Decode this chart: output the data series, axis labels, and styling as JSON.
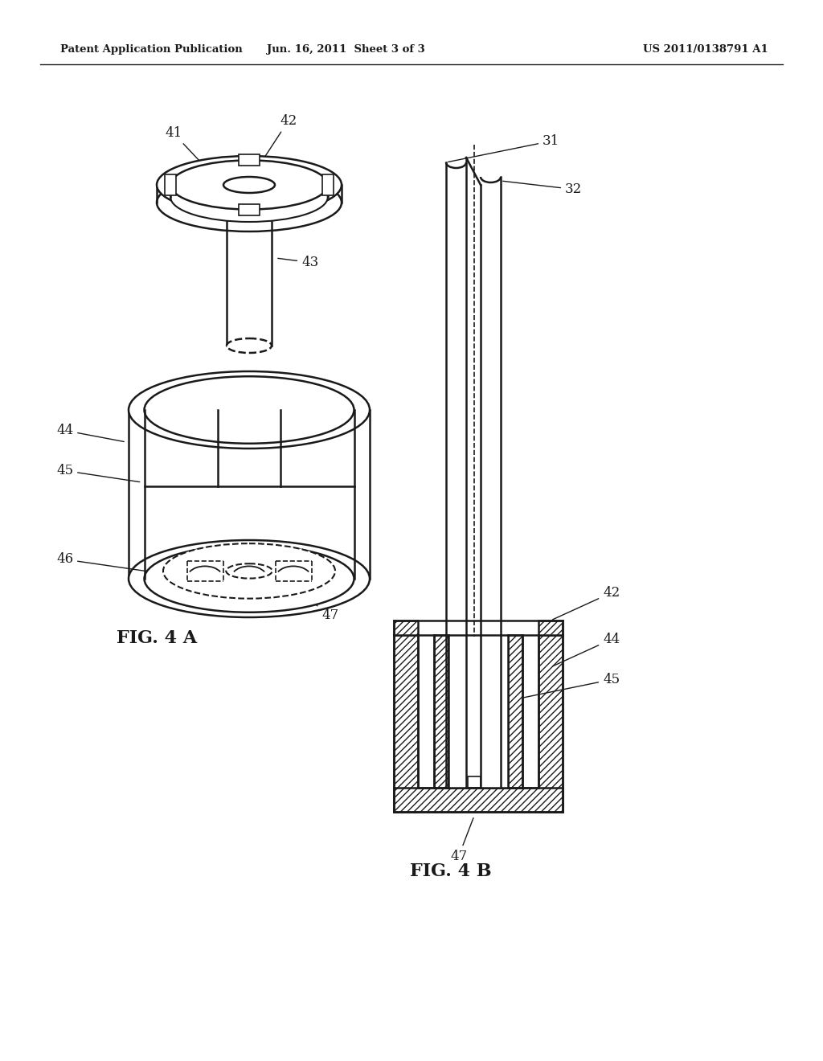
{
  "title_left": "Patent Application Publication",
  "title_mid": "Jun. 16, 2011  Sheet 3 of 3",
  "title_right": "US 2011/0138791 A1",
  "fig4a_label": "FIG. 4 A",
  "fig4b_label": "FIG. 4 B",
  "bg_color": "#ffffff",
  "line_color": "#1a1a1a"
}
